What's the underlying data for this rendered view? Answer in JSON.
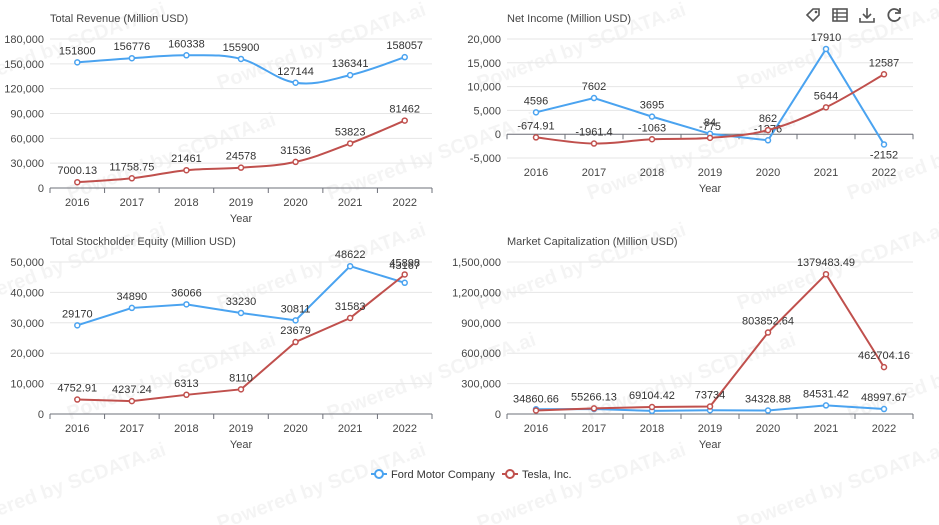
{
  "toolbar": {
    "items": [
      {
        "name": "tag-icon"
      },
      {
        "name": "data-view-icon"
      },
      {
        "name": "download-icon"
      },
      {
        "name": "refresh-icon"
      }
    ]
  },
  "watermark": "Powered by SCDATA.ai",
  "colors": {
    "ford": "#4aa3f0",
    "tesla": "#c0504d"
  },
  "legend": {
    "items": [
      {
        "label": "Ford Motor Company",
        "color": "#4aa3f0"
      },
      {
        "label": "Tesla, Inc.",
        "color": "#c0504d"
      }
    ]
  },
  "chart_data": [
    {
      "type": "line",
      "title": "Total Revenue (Million USD)",
      "xlabel": "Year",
      "categories": [
        "2016",
        "2017",
        "2018",
        "2019",
        "2020",
        "2021",
        "2022"
      ],
      "ylim": [
        0,
        180000
      ],
      "yticks": [
        0,
        30000,
        60000,
        90000,
        120000,
        150000,
        180000
      ],
      "ytick_labels": [
        "0",
        "30,000",
        "60,000",
        "90,000",
        "120,000",
        "150,000",
        "180,000"
      ],
      "series": [
        {
          "name": "Ford Motor Company",
          "values": [
            151800,
            156776,
            160338,
            155900,
            127144,
            136341,
            158057
          ],
          "labels": [
            "151800",
            "156776",
            "160338",
            "155900",
            "127144",
            "136341",
            "158057"
          ],
          "smooth": true
        },
        {
          "name": "Tesla, Inc.",
          "values": [
            7000.13,
            11758.75,
            21461,
            24578,
            31536,
            53823,
            81462
          ],
          "labels": [
            "7000.13",
            "11758.75",
            "21461",
            "24578",
            "31536",
            "53823",
            "81462"
          ],
          "smooth": true
        }
      ]
    },
    {
      "type": "line",
      "title": "Net Income (Million USD)",
      "xlabel": "Year",
      "categories": [
        "2016",
        "2017",
        "2018",
        "2019",
        "2020",
        "2021",
        "2022"
      ],
      "ylim": [
        -5000,
        20000
      ],
      "yticks": [
        -5000,
        0,
        5000,
        10000,
        15000,
        20000
      ],
      "ytick_labels": [
        "-5,000",
        "0",
        "5,000",
        "10,000",
        "15,000",
        "20,000"
      ],
      "series": [
        {
          "name": "Ford Motor Company",
          "values": [
            4596,
            7602,
            3695,
            84,
            -1276,
            17910,
            -2152
          ],
          "labels": [
            "4596",
            "7602",
            "3695",
            "84",
            "-1276",
            "17910",
            "-2152"
          ],
          "smooth": false
        },
        {
          "name": "Tesla, Inc.",
          "values": [
            -674.91,
            -1961.4,
            -1063,
            -775,
            862,
            5644,
            12587
          ],
          "labels": [
            "-674.91",
            "-1961.4",
            "-1063",
            "-775",
            "862",
            "5644",
            "12587"
          ],
          "smooth": true
        }
      ]
    },
    {
      "type": "line",
      "title": "Total Stockholder Equity (Million USD)",
      "xlabel": "Year",
      "categories": [
        "2016",
        "2017",
        "2018",
        "2019",
        "2020",
        "2021",
        "2022"
      ],
      "ylim": [
        0,
        50000
      ],
      "yticks": [
        0,
        10000,
        20000,
        30000,
        40000,
        50000
      ],
      "ytick_labels": [
        "0",
        "10,000",
        "20,000",
        "30,000",
        "40,000",
        "50,000"
      ],
      "series": [
        {
          "name": "Ford Motor Company",
          "values": [
            29170,
            34890,
            36066,
            33230,
            30811,
            48622,
            43167
          ],
          "labels": [
            "29170",
            "34890",
            "36066",
            "33230",
            "30811",
            "48622",
            "43167"
          ],
          "smooth": false
        },
        {
          "name": "Tesla, Inc.",
          "values": [
            4752.91,
            4237.24,
            6313,
            8110,
            23679,
            31583,
            45898
          ],
          "labels": [
            "4752.91",
            "4237.24",
            "6313",
            "8110",
            "23679",
            "31583",
            "45898"
          ],
          "smooth": false
        }
      ]
    },
    {
      "type": "line",
      "title": "Market Capitalization (Million USD)",
      "xlabel": "Year",
      "categories": [
        "2016",
        "2017",
        "2018",
        "2019",
        "2020",
        "2021",
        "2022"
      ],
      "ylim": [
        0,
        1500000
      ],
      "yticks": [
        0,
        300000,
        600000,
        900000,
        1200000,
        1500000
      ],
      "ytick_labels": [
        "0",
        "300,000",
        "600,000",
        "900,000",
        "1,200,000",
        "1,500,000"
      ],
      "series": [
        {
          "name": "Ford Motor Company",
          "values": [
            47000,
            49700,
            30400,
            37000,
            34328.88,
            84531.42,
            48997.67
          ],
          "labels": [
            "",
            "",
            "",
            "",
            "34328.88",
            "84531.42",
            "48997.67"
          ],
          "smooth": false
        },
        {
          "name": "Tesla, Inc.",
          "values": [
            34860.66,
            55266.13,
            69104.42,
            73734,
            803852.64,
            1379483.49,
            462704.16
          ],
          "labels": [
            "34860.66",
            "55266.13",
            "69104.42",
            "73734",
            "803852.64",
            "1379483.49",
            "462704.16"
          ],
          "smooth": false
        }
      ]
    }
  ]
}
